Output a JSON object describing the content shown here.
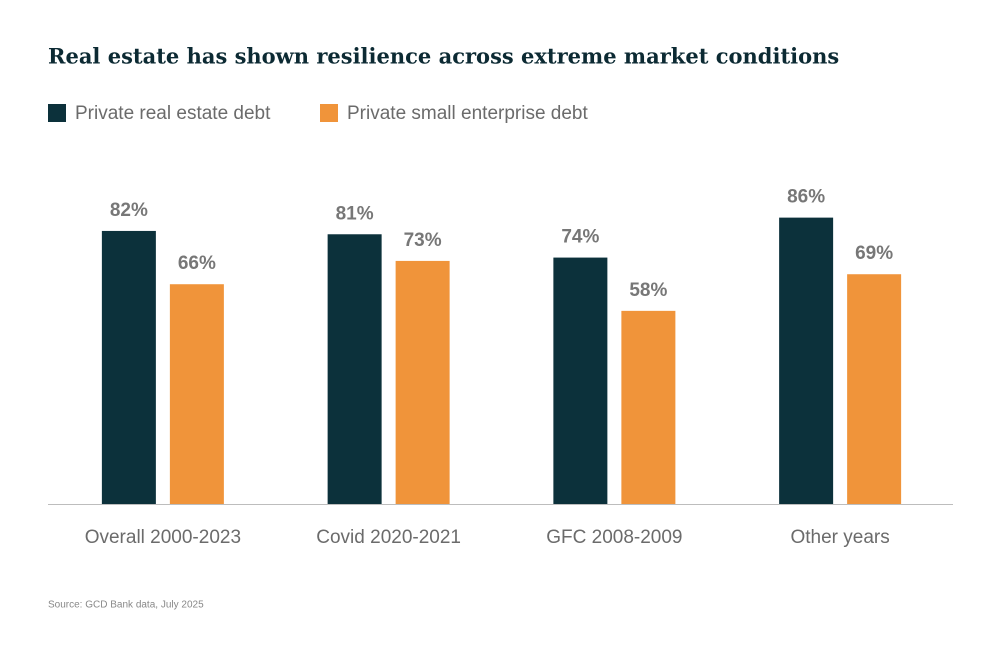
{
  "chart_data": {
    "type": "bar",
    "title": "Real estate has shown resilience across extreme market conditions",
    "categories": [
      "Overall 2000-2023",
      "Covid 2020-2021",
      "GFC 2008-2009",
      "Other years"
    ],
    "series": [
      {
        "name": "Private real estate debt",
        "color": "#0c313b",
        "values": [
          82,
          81,
          74,
          86
        ],
        "value_labels": [
          "82%",
          "81%",
          "74%",
          "86%"
        ]
      },
      {
        "name": "Private small enterprise debt",
        "color": "#f0943a",
        "values": [
          66,
          73,
          58,
          69
        ],
        "value_labels": [
          "66%",
          "73%",
          "58%",
          "69%"
        ]
      }
    ],
    "source": "Source: GCD Bank data, July 2025"
  }
}
